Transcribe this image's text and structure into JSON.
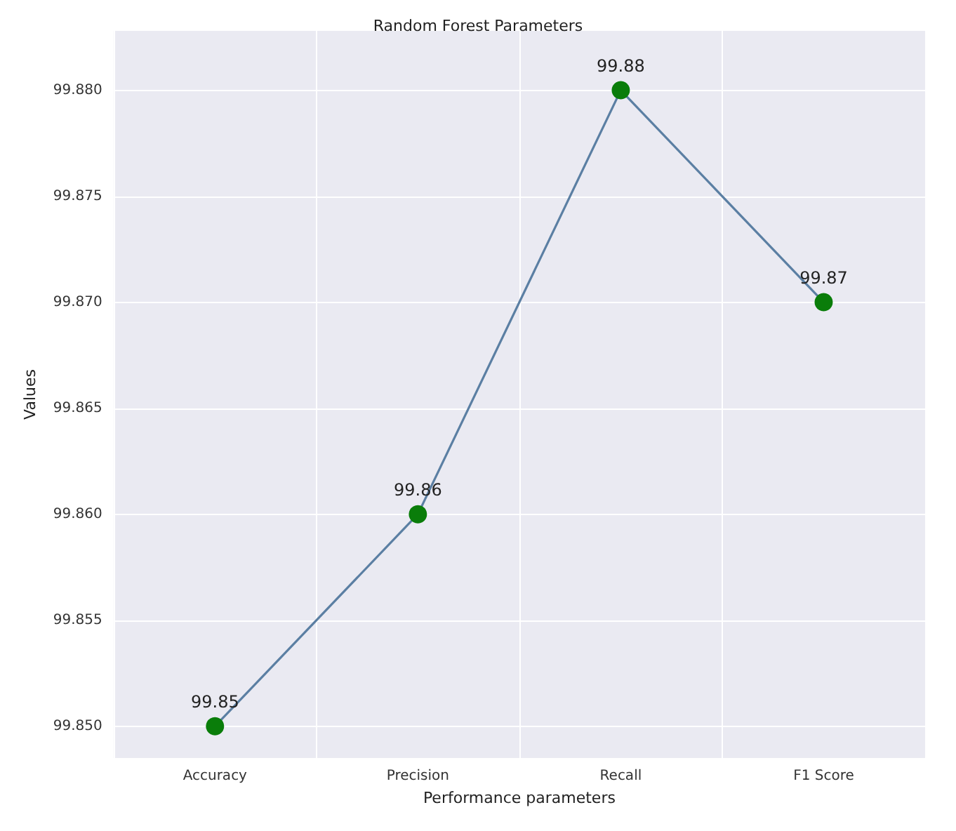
{
  "chart_data": {
    "type": "line",
    "title": "Random Forest Parameters",
    "xlabel": "Performance parameters",
    "ylabel": "Values",
    "categories": [
      "Accuracy",
      "Precision",
      "Recall",
      "F1 Score"
    ],
    "series": [
      {
        "color": "#5b7fa3",
        "colors": [
          "#0a7d0a",
          "#0a7d0a",
          "#0a7d0a",
          "#0a7d0a"
        ],
        "values": [
          99.85,
          99.86,
          99.88,
          99.87
        ]
      }
    ],
    "ylim": [
      99.8485,
      99.8828
    ],
    "yticks": [
      {
        "value": 99.85,
        "label": "99.850"
      },
      {
        "value": 99.855,
        "label": "99.855"
      },
      {
        "value": 99.86,
        "label": "99.860"
      },
      {
        "value": 99.865,
        "label": "99.865"
      },
      {
        "value": 99.87,
        "label": "99.870"
      },
      {
        "value": 99.875,
        "label": "99.875"
      },
      {
        "value": 99.88,
        "label": "99.880"
      }
    ],
    "grid": true,
    "marker": "circle",
    "data_labels": true
  }
}
